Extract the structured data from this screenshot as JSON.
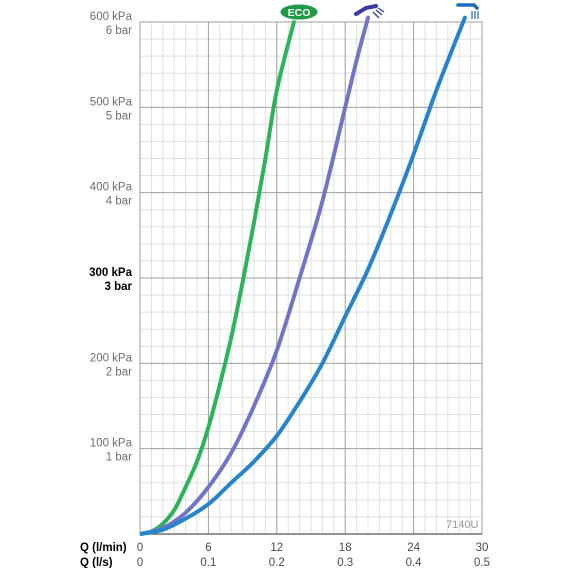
{
  "chart_data": {
    "type": "line",
    "title": "",
    "xlabel": "Q (l/min)",
    "xlabel_secondary": "Q (l/s)",
    "xlim": [
      0,
      30
    ],
    "ylim": [
      0,
      600
    ],
    "x_ticks_primary": [
      "0",
      "6",
      "12",
      "18",
      "24",
      "30"
    ],
    "x_ticks_secondary": [
      "0",
      "0.1",
      "0.2",
      "0.3",
      "0.4",
      "0.5"
    ],
    "y_ticks": [
      {
        "value": 100,
        "kpa": "100 kPa",
        "bar": "1 bar",
        "bold": false
      },
      {
        "value": 200,
        "kpa": "200 kPa",
        "bar": "2 bar",
        "bold": false
      },
      {
        "value": 300,
        "kpa": "300 kPa",
        "bar": "3 bar",
        "bold": true
      },
      {
        "value": 400,
        "kpa": "400 kPa",
        "bar": "4 bar",
        "bold": false
      },
      {
        "value": 500,
        "kpa": "500 kPa",
        "bar": "5 bar",
        "bold": false
      },
      {
        "value": 600,
        "kpa": "600 kPa",
        "bar": "6 bar",
        "bold": false
      }
    ],
    "grid": true,
    "series": [
      {
        "name": "ECO",
        "color": "#2db45a",
        "x": [
          0,
          1,
          2,
          3,
          4,
          5,
          6,
          7,
          8,
          9,
          10,
          11,
          12,
          13.5
        ],
        "y": [
          0,
          3,
          12,
          28,
          55,
          85,
          125,
          175,
          230,
          295,
          365,
          440,
          520,
          600
        ]
      },
      {
        "name": "",
        "icon": "hand-shower-icon",
        "color": "#7474c6",
        "x": [
          0,
          2,
          4,
          6,
          8,
          10,
          12,
          14,
          16,
          18,
          19,
          20
        ],
        "y": [
          0,
          7,
          25,
          55,
          95,
          150,
          215,
          300,
          390,
          500,
          555,
          605
        ]
      },
      {
        "name": "",
        "icon": "overhead-shower-icon",
        "color": "#2584cc",
        "x": [
          0,
          2,
          4,
          6,
          8,
          10,
          12,
          14,
          16,
          18,
          20,
          22,
          24,
          26,
          28.5
        ],
        "y": [
          0,
          5,
          18,
          35,
          60,
          85,
          115,
          155,
          200,
          255,
          310,
          375,
          445,
          520,
          605
        ]
      }
    ]
  },
  "model_code": "7140U"
}
